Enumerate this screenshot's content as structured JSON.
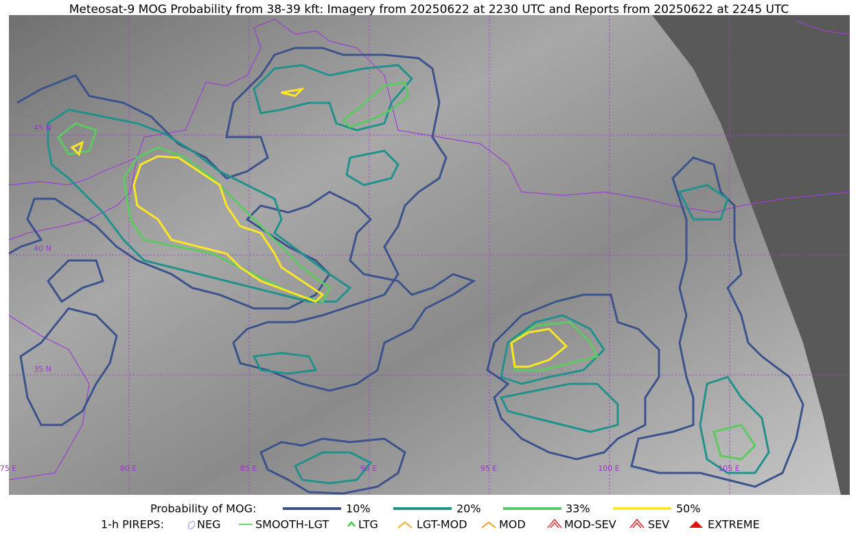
{
  "title": "Meteosat-9 MOG Probability from 38-39 kft: Imagery from 20250622 at 2230 UTC and Reports from 20250622 at 2245 UTC",
  "map": {
    "lat_labels": [
      "45 N",
      "40 N",
      "35 N"
    ],
    "lon_labels": [
      "75 E",
      "80 E",
      "85 E",
      "90 E",
      "95 E",
      "100 E",
      "105 E"
    ]
  },
  "legend": {
    "mog_label": "Probability of MOG:",
    "mog_items": [
      "10%",
      "20%",
      "33%",
      "50%"
    ],
    "pirep_label": "1-h PIREPS:",
    "pirep_items": [
      "NEG",
      "SMOOTH-LGT",
      "LTG",
      "LGT-MOD",
      "MOD",
      "MOD-SEV",
      "SEV",
      "EXTREME"
    ]
  }
}
